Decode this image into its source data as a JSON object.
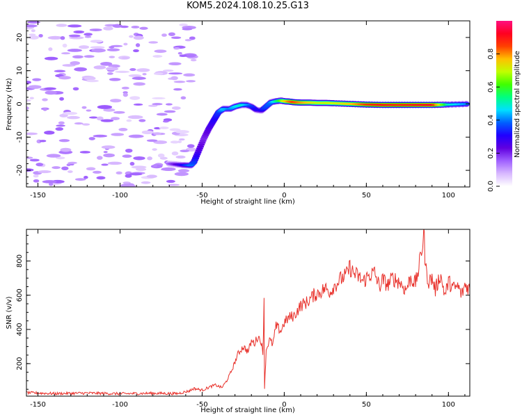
{
  "title": "KOM5.2024.108.10.25.G13",
  "chart_data": [
    {
      "type": "heatmap",
      "xlabel": "Height of straight line (km)",
      "ylabel": "Frequency (Hz)",
      "xlim": [
        -157,
        113
      ],
      "ylim": [
        -25,
        25
      ],
      "x_ticks": [
        -150,
        -100,
        -50,
        0,
        50,
        100
      ],
      "y_ticks": [
        -20,
        -10,
        0,
        10,
        20
      ],
      "colorbar": {
        "label": "Normalized spectral amplitude",
        "range": [
          0,
          1
        ],
        "ticks": [
          0.0,
          0.2,
          0.4,
          0.6,
          0.8
        ],
        "colormap": [
          "#ffffff",
          "#d8b8ff",
          "#a060ff",
          "#6000e0",
          "#2000ff",
          "#0060ff",
          "#00e0ff",
          "#00ff80",
          "#40ff00",
          "#c0ff00",
          "#ffc000",
          "#ff4000",
          "#ff0020",
          "#ff1080"
        ]
      },
      "ridge": {
        "x": [
          -70,
          -62,
          -57,
          -55,
          -52,
          -49,
          -46,
          -43,
          -40,
          -37,
          -33,
          -30,
          -26,
          -23,
          -20,
          -17,
          -14,
          -12,
          -8,
          -5,
          -2,
          0,
          3,
          6,
          10,
          15,
          20,
          25,
          30,
          40,
          50,
          60,
          70,
          80,
          90,
          100,
          113
        ],
        "y": [
          -18,
          -18.4,
          -18.5,
          -17.5,
          -14,
          -10.5,
          -7.5,
          -5,
          -2.5,
          -1.5,
          -1.5,
          -0.8,
          -0.3,
          -0.3,
          -0.8,
          -1.8,
          -2,
          -1.2,
          0.5,
          0.8,
          1,
          0.8,
          0.7,
          0.5,
          0.4,
          0.4,
          0.3,
          0.3,
          0.2,
          0,
          -0.2,
          -0.3,
          -0.3,
          -0.3,
          -0.3,
          -0.2,
          0
        ],
        "amplitude": [
          0.15,
          0.3,
          0.4,
          0.35,
          0.25,
          0.2,
          0.25,
          0.3,
          0.35,
          0.45,
          0.4,
          0.45,
          0.5,
          0.45,
          0.35,
          0.3,
          0.3,
          0.35,
          0.4,
          0.5,
          0.6,
          0.7,
          0.8,
          0.85,
          0.8,
          0.75,
          0.7,
          0.7,
          0.7,
          0.75,
          0.85,
          0.9,
          0.88,
          0.9,
          0.92,
          0.5,
          0.4
        ]
      }
    },
    {
      "type": "line",
      "xlabel": "Height of straight line (km)",
      "ylabel": "SNR (v/v)",
      "xlim": [
        -157,
        113
      ],
      "ylim": [
        10,
        985
      ],
      "x_ticks": [
        -150,
        -100,
        -50,
        0,
        50,
        100
      ],
      "y_ticks": [
        200,
        400,
        600,
        800
      ],
      "color": "#e8302a",
      "series": [
        {
          "x": [
            -157,
            -140,
            -120,
            -100,
            -80,
            -65,
            -58,
            -55,
            -50,
            -45,
            -42,
            -38,
            -35,
            -32,
            -30,
            -28,
            -25,
            -22,
            -20,
            -18,
            -16,
            -14,
            -13,
            -12.3,
            -12,
            -11,
            -9,
            -7,
            -5,
            -2,
            0,
            3,
            6,
            10,
            14,
            18,
            22,
            25,
            28,
            30,
            34,
            38,
            40,
            42,
            45,
            48,
            52,
            55,
            58,
            60,
            63,
            66,
            70,
            74,
            77,
            80,
            82,
            84,
            85,
            86,
            88,
            90,
            92,
            95,
            98,
            100,
            103,
            106,
            108,
            110,
            113
          ],
          "y": [
            30,
            25,
            28,
            24,
            27,
            25,
            40,
            55,
            45,
            65,
            75,
            60,
            100,
            160,
            210,
            260,
            300,
            270,
            330,
            320,
            360,
            330,
            250,
            590,
            60,
            280,
            340,
            310,
            420,
            390,
            440,
            470,
            480,
            540,
            560,
            600,
            620,
            640,
            620,
            650,
            690,
            720,
            765,
            730,
            710,
            680,
            720,
            730,
            650,
            690,
            660,
            700,
            680,
            630,
            700,
            670,
            760,
            880,
            985,
            760,
            680,
            700,
            630,
            720,
            600,
            680,
            640,
            650,
            600,
            660,
            640
          ]
        }
      ]
    }
  ]
}
